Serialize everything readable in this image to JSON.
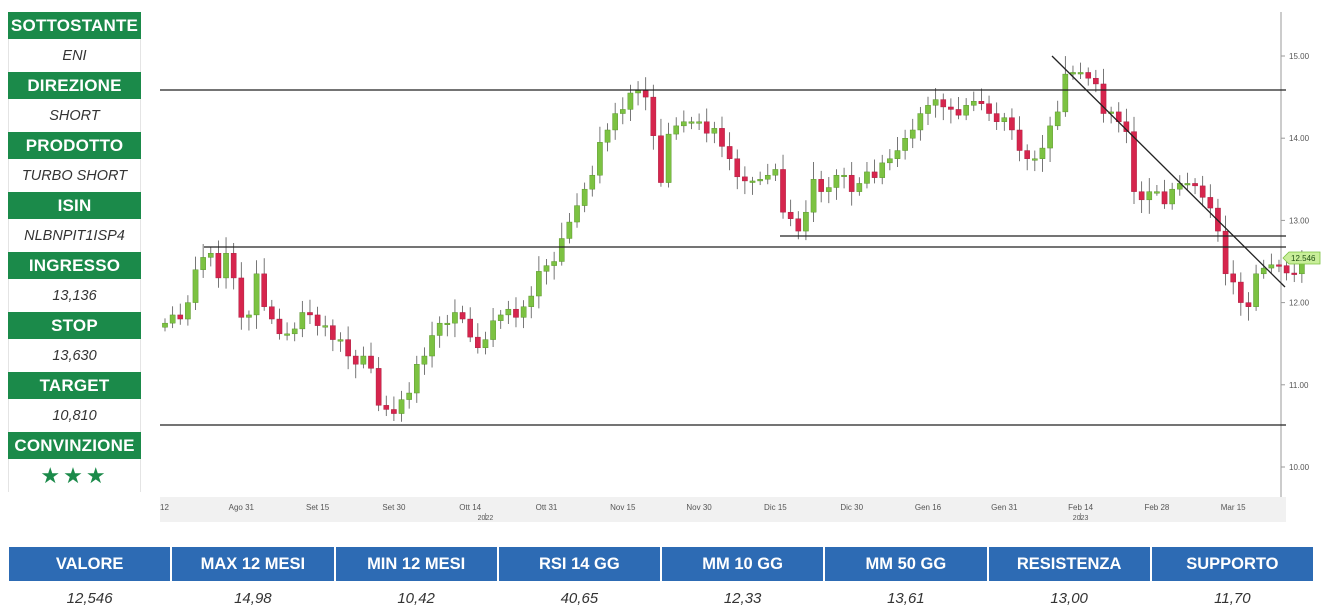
{
  "sidebar": [
    {
      "label": "SOTTOSTANTE",
      "value": "ENI"
    },
    {
      "label": "DIREZIONE",
      "value": "SHORT"
    },
    {
      "label": "PRODOTTO",
      "value": "TURBO SHORT"
    },
    {
      "label": "ISIN",
      "value": "NLBNPIT1ISP4"
    },
    {
      "label": "INGRESSO",
      "value": "13,136"
    },
    {
      "label": "STOP",
      "value": "13,630"
    },
    {
      "label": "TARGET",
      "value": "10,810"
    },
    {
      "label": "CONVINZIONE",
      "value": "★★★"
    }
  ],
  "stats": {
    "headers": [
      "VALORE",
      "MAX 12 MESI",
      "MIN 12 MESI",
      "RSI 14 GG",
      "MM 10 GG",
      "MM 50 GG",
      "RESISTENZA",
      "SUPPORTO"
    ],
    "values": [
      "12,546",
      "14,98",
      "10,42",
      "40,65",
      "12,33",
      "13,61",
      "13,00",
      "11,70"
    ]
  },
  "colors": {
    "sidebar_green": "#1b8a4a",
    "header_blue": "#2d6bb4",
    "candle_up": "#7cc242",
    "candle_down": "#d6254d"
  },
  "chart_data": {
    "type": "candlestick",
    "y_ticks": [
      "10.00",
      "11.00",
      "12.00",
      "13.00",
      "14.00",
      "15.00"
    ],
    "ylim": [
      9.6,
      15.5
    ],
    "x_ticks": [
      "12",
      "Ago 31",
      "Set 15",
      "Set 30",
      "Ott 14",
      "Ott 31",
      "Nov 15",
      "Nov 30",
      "Dic 15",
      "Dic 30",
      "Gen 16",
      "Gen 31",
      "Feb 14",
      "Feb 28",
      "Mar 15"
    ],
    "x_tick_index": [
      0,
      10,
      20,
      30,
      40,
      50,
      60,
      70,
      80,
      90,
      100,
      110,
      120,
      130,
      140
    ],
    "year_labels": [
      {
        "text": "2022",
        "index": 42
      },
      {
        "text": "2023",
        "index": 120
      }
    ],
    "last_price_label": "12.546",
    "closes": [
      11.75,
      11.85,
      11.8,
      12.0,
      12.4,
      12.55,
      12.6,
      12.3,
      12.6,
      12.3,
      11.82,
      11.85,
      12.35,
      11.95,
      11.8,
      11.62,
      11.62,
      11.68,
      11.88,
      11.85,
      11.72,
      11.72,
      11.55,
      11.55,
      11.35,
      11.25,
      11.35,
      11.2,
      10.75,
      10.7,
      10.65,
      10.82,
      10.9,
      11.25,
      11.35,
      11.6,
      11.75,
      11.75,
      11.88,
      11.8,
      11.58,
      11.45,
      11.55,
      11.78,
      11.85,
      11.92,
      11.82,
      11.95,
      12.08,
      12.38,
      12.45,
      12.5,
      12.78,
      12.98,
      13.18,
      13.38,
      13.55,
      13.95,
      14.1,
      14.3,
      14.35,
      14.55,
      14.58,
      14.5,
      14.03,
      13.46,
      14.05,
      14.15,
      14.2,
      14.2,
      14.2,
      14.06,
      14.12,
      13.9,
      13.75,
      13.53,
      13.48,
      13.48,
      13.5,
      13.55,
      13.62,
      13.1,
      13.02,
      12.87,
      13.1,
      13.5,
      13.35,
      13.4,
      13.55,
      13.55,
      13.35,
      13.45,
      13.59,
      13.52,
      13.7,
      13.75,
      13.85,
      14.0,
      14.1,
      14.3,
      14.4,
      14.47,
      14.38,
      14.35,
      14.28,
      14.4,
      14.45,
      14.42,
      14.3,
      14.2,
      14.25,
      14.1,
      13.85,
      13.75,
      13.75,
      13.88,
      14.15,
      14.32,
      14.78,
      14.8,
      14.8,
      14.73,
      14.66,
      14.3,
      14.32,
      14.2,
      14.08,
      13.35,
      13.25,
      13.35,
      13.35,
      13.2,
      13.38,
      13.45,
      13.45,
      13.42,
      13.28,
      13.15,
      12.87,
      12.35,
      12.25,
      12.0,
      11.95,
      12.35,
      12.42,
      12.46,
      12.45,
      12.36,
      12.35,
      12.54
    ],
    "xlabel": "",
    "ylabel": ""
  }
}
